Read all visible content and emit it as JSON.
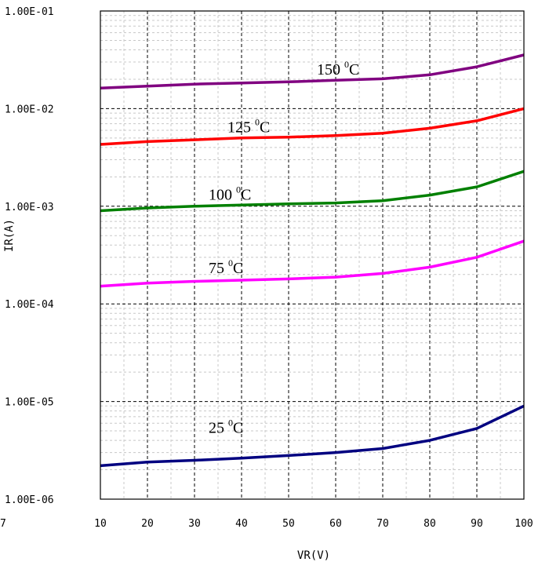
{
  "chart_data": {
    "type": "line",
    "title": "",
    "xlabel": "VR(V)",
    "ylabel": "IR(A)",
    "yscale": "log",
    "xlim": [
      10,
      100
    ],
    "ylim": [
      1e-06,
      0.1
    ],
    "x_ticks": [
      "10",
      "20",
      "30",
      "40",
      "50",
      "60",
      "70",
      "80",
      "90",
      "100"
    ],
    "y_ticks": [
      "1.00E-01",
      "1.00E-02",
      "1.00E-03",
      "1.00E-04",
      "1.00E-05",
      "1.00E-06"
    ],
    "stray_label": "7",
    "grid": true,
    "series": [
      {
        "name": "150 0C",
        "label_main": "150 ",
        "label_sup": "0",
        "label_unit": "C",
        "color": "#800080",
        "x": [
          10,
          20,
          30,
          40,
          50,
          60,
          70,
          80,
          90,
          100
        ],
        "y": [
          0.0162,
          0.017,
          0.0178,
          0.0183,
          0.0188,
          0.0195,
          0.0202,
          0.0222,
          0.0268,
          0.0355
        ]
      },
      {
        "name": "125 0C",
        "label_main": "125 ",
        "label_sup": "0",
        "label_unit": "C",
        "color": "#ff0000",
        "x": [
          10,
          20,
          30,
          40,
          50,
          60,
          70,
          80,
          90,
          100
        ],
        "y": [
          0.0043,
          0.0046,
          0.0048,
          0.005,
          0.0051,
          0.0053,
          0.0056,
          0.0063,
          0.0075,
          0.01
        ]
      },
      {
        "name": "100 0C",
        "label_main": "100 ",
        "label_sup": "0",
        "label_unit": "C",
        "color": "#008000",
        "x": [
          10,
          20,
          30,
          40,
          50,
          60,
          70,
          80,
          90,
          100
        ],
        "y": [
          0.0009,
          0.00096,
          0.001,
          0.00103,
          0.00106,
          0.00108,
          0.00114,
          0.0013,
          0.00158,
          0.00228
        ]
      },
      {
        "name": "75 0C",
        "label_main": "75 ",
        "label_sup": "0",
        "label_unit": "C",
        "color": "#ff00ff",
        "x": [
          10,
          20,
          30,
          40,
          50,
          60,
          70,
          80,
          90,
          100
        ],
        "y": [
          0.000152,
          0.000163,
          0.00017,
          0.000175,
          0.00018,
          0.000188,
          0.000205,
          0.000238,
          0.0003,
          0.00044
        ]
      },
      {
        "name": "25 0C",
        "label_main": "25 ",
        "label_sup": "0",
        "label_unit": "C",
        "color": "#000080",
        "x": [
          10,
          20,
          30,
          40,
          50,
          60,
          70,
          80,
          90,
          100
        ],
        "y": [
          2.2e-06,
          2.4e-06,
          2.5e-06,
          2.63e-06,
          2.8e-06,
          3e-06,
          3.3e-06,
          4e-06,
          5.3e-06,
          9e-06
        ]
      }
    ]
  }
}
